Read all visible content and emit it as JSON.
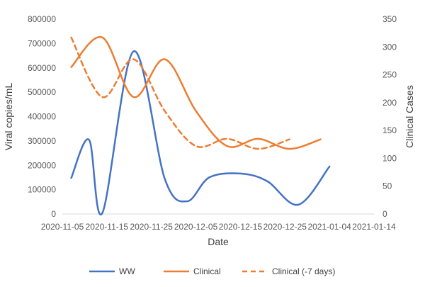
{
  "chart_data": {
    "type": "line",
    "xlabel": "Date",
    "ylabel_left": "Viral copies/mL",
    "ylabel_right": "Clinical Cases",
    "x_ticks": [
      "2020-11-05",
      "2020-11-15",
      "2020-11-25",
      "2020-12-05",
      "2020-12-15",
      "2020-12-25",
      "2021-01-04",
      "2021-01-14"
    ],
    "xlim": [
      "2020-11-05",
      "2021-01-14"
    ],
    "y_left": {
      "lim": [
        0,
        800000
      ],
      "ticks": [
        "0",
        "100000",
        "200000",
        "300000",
        "400000",
        "500000",
        "600000",
        "700000",
        "800000"
      ]
    },
    "y_right": {
      "lim": [
        0,
        350
      ],
      "ticks": [
        "0",
        "50",
        "100",
        "150",
        "200",
        "250",
        "300",
        "350"
      ]
    },
    "grid": false,
    "legend_position": "bottom",
    "series": [
      {
        "name": "WW",
        "axis": "left",
        "color": "#4472C4",
        "dash": "solid",
        "points": [
          [
            "2020-11-07",
            148000
          ],
          [
            "2020-11-11",
            305000
          ],
          [
            "2020-11-14",
            5000
          ],
          [
            "2020-11-21",
            668000
          ],
          [
            "2020-11-28",
            145000
          ],
          [
            "2020-12-03",
            52000
          ],
          [
            "2020-12-08",
            150000
          ],
          [
            "2020-12-15",
            166000
          ],
          [
            "2020-12-21",
            135000
          ],
          [
            "2020-12-28",
            38000
          ],
          [
            "2021-01-04",
            195000
          ]
        ]
      },
      {
        "name": "Clinical",
        "axis": "right",
        "color": "#ED7D31",
        "dash": "solid",
        "points": [
          [
            "2020-11-07",
            264
          ],
          [
            "2020-11-14",
            317
          ],
          [
            "2020-11-21",
            210
          ],
          [
            "2020-11-28",
            278
          ],
          [
            "2020-12-05",
            185
          ],
          [
            "2020-12-12",
            122
          ],
          [
            "2020-12-19",
            135
          ],
          [
            "2020-12-26",
            117
          ],
          [
            "2021-01-02",
            134
          ]
        ]
      },
      {
        "name": "Clinical (-7 days)",
        "axis": "right",
        "color": "#ED7D31",
        "dash": "dashed",
        "points": [
          [
            "2020-11-07",
            317
          ],
          [
            "2020-11-14",
            210
          ],
          [
            "2020-11-21",
            278
          ],
          [
            "2020-11-28",
            185
          ],
          [
            "2020-12-05",
            122
          ],
          [
            "2020-12-12",
            135
          ],
          [
            "2020-12-19",
            117
          ],
          [
            "2020-12-26",
            134
          ]
        ]
      }
    ]
  }
}
